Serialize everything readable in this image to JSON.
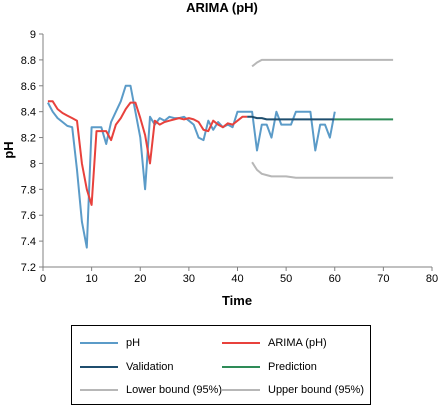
{
  "chart_data": {
    "type": "line",
    "title": "ARIMA (pH)",
    "xlabel": "Time",
    "ylabel": "pH",
    "xlim": [
      0,
      80
    ],
    "ylim": [
      7.2,
      9
    ],
    "xticks": [
      "0",
      "10",
      "20",
      "30",
      "40",
      "50",
      "60",
      "70",
      "80"
    ],
    "yticks": [
      "7.2",
      "7.4",
      "7.6",
      "7.8",
      "8",
      "8.2",
      "8.4",
      "8.6",
      "8.8",
      "9"
    ],
    "grid": false,
    "legend_position": "bottom",
    "series": [
      {
        "name": "pH",
        "color": "#5b9bc8",
        "x": [
          1,
          2,
          3,
          4,
          5,
          6,
          7,
          8,
          9,
          10,
          11,
          12,
          13,
          14,
          15,
          16,
          17,
          18,
          19,
          20,
          21,
          22,
          23,
          24,
          25,
          26,
          27,
          28,
          29,
          30,
          31,
          32,
          33,
          34,
          35,
          36,
          37,
          38,
          39,
          40,
          41,
          42,
          43,
          44,
          45,
          46,
          47,
          48,
          49,
          50,
          51,
          52,
          53,
          54,
          55,
          56,
          57,
          58,
          59,
          60
        ],
        "y": [
          8.47,
          8.4,
          8.35,
          8.32,
          8.29,
          8.28,
          7.95,
          7.55,
          7.35,
          8.28,
          8.28,
          8.28,
          8.15,
          8.32,
          8.4,
          8.48,
          8.6,
          8.6,
          8.4,
          8.2,
          7.8,
          8.36,
          8.3,
          8.35,
          8.33,
          8.36,
          8.35,
          8.35,
          8.36,
          8.33,
          8.3,
          8.2,
          8.18,
          8.33,
          8.26,
          8.32,
          8.28,
          8.3,
          8.28,
          8.4,
          8.4,
          8.4,
          8.4,
          8.1,
          8.3,
          8.3,
          8.2,
          8.4,
          8.3,
          8.3,
          8.3,
          8.4,
          8.4,
          8.4,
          8.4,
          8.1,
          8.3,
          8.3,
          8.2,
          8.4
        ]
      },
      {
        "name": "ARIMA (pH)",
        "color": "#e8413c",
        "x": [
          1,
          2,
          3,
          4,
          5,
          6,
          7,
          8,
          9,
          10,
          11,
          12,
          13,
          14,
          15,
          16,
          17,
          18,
          19,
          20,
          21,
          22,
          23,
          24,
          25,
          26,
          27,
          28,
          29,
          30,
          31,
          32,
          33,
          34,
          35,
          36,
          37,
          38,
          39,
          40,
          41,
          42
        ],
        "y": [
          8.48,
          8.48,
          8.42,
          8.39,
          8.37,
          8.35,
          8.33,
          8.0,
          7.8,
          7.68,
          8.25,
          8.25,
          8.25,
          8.18,
          8.3,
          8.35,
          8.42,
          8.47,
          8.47,
          8.35,
          8.22,
          8.0,
          8.33,
          8.3,
          8.32,
          8.33,
          8.34,
          8.35,
          8.34,
          8.35,
          8.34,
          8.32,
          8.26,
          8.25,
          8.33,
          8.3,
          8.28,
          8.31,
          8.3,
          8.33,
          8.36,
          8.36
        ]
      },
      {
        "name": "Validation",
        "color": "#1f4e6e",
        "x": [
          42,
          43,
          44,
          45,
          46,
          47,
          48,
          49,
          50,
          51,
          52,
          53,
          54,
          55,
          56,
          57,
          58,
          59,
          60
        ],
        "y": [
          8.36,
          8.36,
          8.35,
          8.35,
          8.34,
          8.34,
          8.34,
          8.34,
          8.34,
          8.34,
          8.34,
          8.34,
          8.34,
          8.34,
          8.34,
          8.34,
          8.34,
          8.34,
          8.34
        ]
      },
      {
        "name": "Prediction",
        "color": "#2e8b57",
        "x": [
          60,
          62,
          64,
          66,
          68,
          70,
          72
        ],
        "y": [
          8.34,
          8.34,
          8.34,
          8.34,
          8.34,
          8.34,
          8.34
        ]
      },
      {
        "name": "Lower bound (95%)",
        "color": "#b7b7b7",
        "x": [
          43,
          44,
          45,
          46,
          47,
          48,
          50,
          52,
          55,
          60,
          65,
          70,
          72
        ],
        "y": [
          8.01,
          7.95,
          7.92,
          7.91,
          7.9,
          7.9,
          7.9,
          7.89,
          7.89,
          7.89,
          7.89,
          7.89,
          7.89
        ]
      },
      {
        "name": "Upper bound (95%)",
        "color": "#b7b7b7",
        "x": [
          43,
          44,
          45,
          46,
          47,
          48,
          50,
          52,
          55,
          60,
          65,
          70,
          72
        ],
        "y": [
          8.75,
          8.78,
          8.8,
          8.8,
          8.8,
          8.8,
          8.8,
          8.8,
          8.8,
          8.8,
          8.8,
          8.8,
          8.8
        ]
      }
    ]
  },
  "legend": {
    "items": [
      {
        "label": "pH",
        "color": "#5b9bc8"
      },
      {
        "label": "ARIMA (pH)",
        "color": "#e8413c"
      },
      {
        "label": "Validation",
        "color": "#1f4e6e"
      },
      {
        "label": "Prediction",
        "color": "#2e8b57"
      },
      {
        "label": "Lower bound (95%)",
        "color": "#b7b7b7"
      },
      {
        "label": "Upper bound (95%)",
        "color": "#b7b7b7"
      }
    ]
  }
}
